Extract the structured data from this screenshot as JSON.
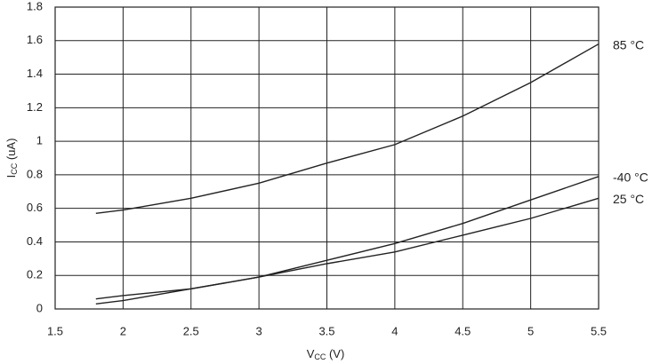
{
  "chart_data": {
    "type": "line",
    "xlabel": {
      "main": "V",
      "sub": "CC",
      "rest": " (V)"
    },
    "ylabel": {
      "main": "I",
      "sub": "CC",
      "rest": " (uA)"
    },
    "x": [
      1.8,
      2.0,
      2.5,
      3.0,
      3.5,
      4.0,
      4.5,
      5.0,
      5.5
    ],
    "series": [
      {
        "name": "85 °C",
        "color": "#222222",
        "values": [
          0.57,
          0.59,
          0.66,
          0.75,
          0.87,
          0.98,
          1.15,
          1.35,
          1.58
        ]
      },
      {
        "name": "-40 °C",
        "color": "#222222",
        "values": [
          0.06,
          0.08,
          0.12,
          0.19,
          0.29,
          0.39,
          0.51,
          0.65,
          0.79
        ]
      },
      {
        "name": "25 °C",
        "color": "#222222",
        "values": [
          0.03,
          0.05,
          0.12,
          0.19,
          0.27,
          0.34,
          0.44,
          0.54,
          0.66
        ]
      }
    ],
    "xlim": [
      1.5,
      5.5
    ],
    "xticks": [
      1.5,
      2,
      2.5,
      3,
      3.5,
      4,
      4.5,
      5,
      5.5
    ],
    "ylim": [
      0,
      1.8
    ],
    "yticks": [
      0,
      0.2,
      0.4,
      0.6,
      0.8,
      1,
      1.2,
      1.4,
      1.6,
      1.8
    ],
    "grid": true
  }
}
